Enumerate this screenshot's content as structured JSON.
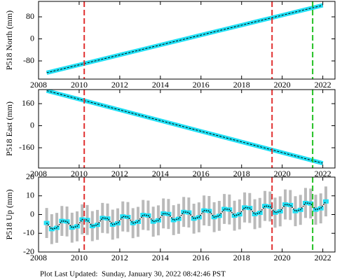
{
  "chart_data": [
    {
      "type": "line",
      "ylabel": "P518 North (mm)",
      "x": [
        2008.4,
        2009,
        2010,
        2011,
        2012,
        2013,
        2014,
        2015,
        2016,
        2017,
        2018,
        2019,
        2020,
        2021,
        2022
      ],
      "series": [
        {
          "color": "#22e0f5",
          "values": [
            -123,
            -112.2,
            -94.2,
            -76.2,
            -58.2,
            -40.2,
            -22.2,
            -4.2,
            13.8,
            31.8,
            49.8,
            67.8,
            85.8,
            103.8,
            121.8
          ]
        }
      ],
      "xlim": [
        2008,
        2022.6
      ],
      "xticks": [
        2008,
        2010,
        2012,
        2014,
        2016,
        2018,
        2020,
        2022
      ],
      "ylim": [
        -146,
        136
      ],
      "yticks": [
        -80,
        0,
        80
      ]
    },
    {
      "type": "line",
      "ylabel": "P518 East (mm)",
      "x": [
        2008.4,
        2009,
        2010,
        2011,
        2012,
        2013,
        2014,
        2015,
        2016,
        2017,
        2018,
        2019,
        2020,
        2021,
        2022
      ],
      "series": [
        {
          "color": "#22e0f5",
          "values": [
            254,
            230.8,
            192.1,
            153.4,
            114.7,
            76.0,
            37.3,
            -1.4,
            -40.1,
            -78.8,
            -117.5,
            -156.2,
            -194.9,
            -233.6,
            -272.3
          ]
        }
      ],
      "xlim": [
        2008,
        2022.6
      ],
      "xticks": [
        2008,
        2010,
        2012,
        2014,
        2016,
        2018,
        2020,
        2022
      ],
      "ylim": [
        -307,
        262
      ],
      "yticks": [
        -160,
        0,
        160
      ]
    },
    {
      "type": "scatter",
      "ylabel": "P518 Up (mm)",
      "x": [
        2008.4,
        2008.65,
        2008.9,
        2009.15,
        2009.4,
        2009.65,
        2009.9,
        2010.15,
        2010.4,
        2010.65,
        2010.9,
        2011.15,
        2011.4,
        2011.65,
        2011.9,
        2012.15,
        2012.4,
        2012.65,
        2012.9,
        2013.15,
        2013.4,
        2013.65,
        2013.9,
        2014.15,
        2014.4,
        2014.65,
        2014.9,
        2015.15,
        2015.4,
        2015.65,
        2015.9,
        2016.15,
        2016.4,
        2016.65,
        2016.9,
        2017.15,
        2017.4,
        2017.65,
        2017.9,
        2018.15,
        2018.4,
        2018.65,
        2018.9,
        2019.15,
        2019.4,
        2019.65,
        2019.9,
        2020.15,
        2020.4,
        2020.65,
        2020.9,
        2021.15,
        2021.4,
        2021.65,
        2021.9,
        2022.15
      ],
      "series": [
        {
          "color": "#22e0f5",
          "line_color": "#000000",
          "error": 8,
          "values": [
            -4.5,
            -7.8,
            -7.1,
            -3.4,
            -3.7,
            -7.0,
            -6.3,
            -2.6,
            -2.9,
            -6.2,
            -5.5,
            -1.8,
            -2.1,
            -5.4,
            -4.7,
            -1.0,
            -1.3,
            -4.6,
            -3.9,
            -0.2,
            -0.5,
            -3.8,
            -3.1,
            0.6,
            0.3,
            -3.0,
            -2.3,
            1.4,
            1.1,
            -2.2,
            -1.5,
            2.2,
            1.9,
            -1.4,
            -0.7,
            3.0,
            2.7,
            -0.6,
            0.1,
            3.8,
            3.5,
            0.2,
            0.9,
            4.6,
            4.3,
            1.0,
            1.7,
            5.4,
            5.1,
            1.8,
            2.5,
            6.2,
            5.9,
            2.6,
            3.3,
            7.0
          ]
        }
      ],
      "xlim": [
        2008,
        2022.6
      ],
      "xticks": [
        2008,
        2010,
        2012,
        2014,
        2016,
        2018,
        2020,
        2022
      ],
      "ylim": [
        -20,
        20
      ],
      "yticks": [
        -20,
        -10,
        0,
        10,
        20
      ]
    }
  ],
  "events": [
    {
      "x": 2010.25,
      "color": "#e03030"
    },
    {
      "x": 2019.5,
      "color": "#e03030"
    },
    {
      "x": 2021.5,
      "color": "#22c022"
    }
  ],
  "footer": {
    "label": "Plot Last Updated:",
    "value": "Sunday, January 30, 2022 08:42:46 PST"
  }
}
